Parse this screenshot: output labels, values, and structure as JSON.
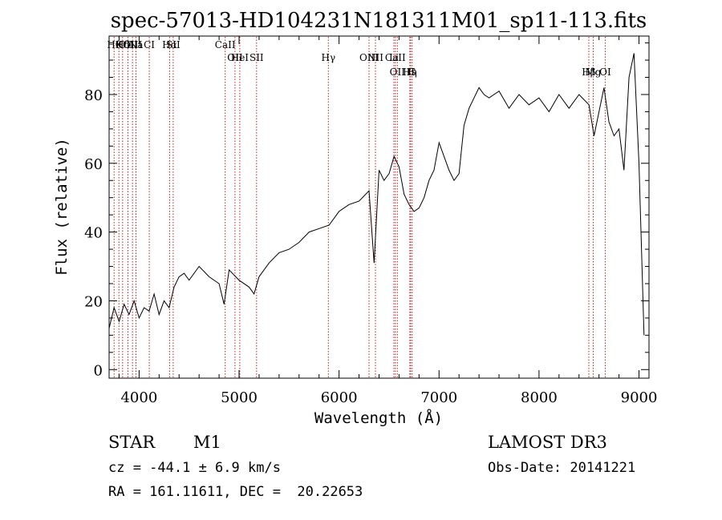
{
  "chart_data": {
    "type": "line",
    "title": "spec-57013-HD104231N181311M01_sp11-113.fits",
    "xlabel": "Wavelength (Å)",
    "ylabel": "Flux (relative)",
    "xlim": [
      3700,
      9100
    ],
    "ylim": [
      -2.5,
      97
    ],
    "x_ticks": [
      4000,
      5000,
      6000,
      7000,
      8000,
      9000
    ],
    "y_ticks": [
      0,
      20,
      40,
      60,
      80
    ],
    "grid": false,
    "line_color": "#000000",
    "marker_color": "#b22222",
    "series": [
      {
        "x": [
          3700,
          3750,
          3800,
          3850,
          3900,
          3950,
          4000,
          4050,
          4100,
          4150,
          4200,
          4250,
          4300,
          4350,
          4400,
          4450,
          4500,
          4600,
          4700,
          4800,
          4850,
          4900,
          5000,
          5100,
          5150,
          5200,
          5300,
          5400,
          5500,
          5600,
          5700,
          5800,
          5900,
          6000,
          6100,
          6200,
          6300,
          6350,
          6400,
          6450,
          6500,
          6550,
          6600,
          6650,
          6700,
          6750,
          6800,
          6850,
          6900,
          6950,
          7000,
          7050,
          7100,
          7150,
          7200,
          7250,
          7300,
          7350,
          7400,
          7450,
          7500,
          7600,
          7700,
          7800,
          7900,
          8000,
          8100,
          8200,
          8300,
          8400,
          8500,
          8550,
          8600,
          8650,
          8700,
          8750,
          8800,
          8850,
          8900,
          8950,
          9000,
          9050
        ],
        "y": [
          12,
          18,
          14,
          19,
          16,
          20,
          15,
          18,
          17,
          22,
          16,
          20,
          18,
          24,
          27,
          28,
          26,
          30,
          27,
          25,
          19,
          29,
          26,
          24,
          22,
          27,
          31,
          34,
          35,
          37,
          40,
          41,
          42,
          46,
          48,
          49,
          52,
          31,
          58,
          55,
          57,
          62,
          59,
          51,
          48,
          46,
          47,
          50,
          55,
          58,
          66,
          62,
          58,
          55,
          57,
          71,
          76,
          79,
          82,
          80,
          79,
          81,
          76,
          80,
          77,
          79,
          75,
          80,
          76,
          80,
          77,
          68,
          75,
          82,
          72,
          68,
          70,
          58,
          85,
          92,
          60,
          10
        ]
      }
    ],
    "line_markers": [
      {
        "wl": 3750,
        "label": "Hθ",
        "row": 1
      },
      {
        "wl": 3798,
        "label": "K",
        "row": 1
      },
      {
        "wl": 3835,
        "label": "Hδ",
        "row": 1
      },
      {
        "wl": 3889,
        "label": "OIII",
        "row": 1
      },
      {
        "wl": 3934,
        "label": "OIII",
        "row": 1
      },
      {
        "wl": 3969,
        "label": "Na",
        "row": 1
      },
      {
        "wl": 4102,
        "label": "CI",
        "row": 1
      },
      {
        "wl": 4305,
        "label": "Hα",
        "row": 1
      },
      {
        "wl": 4341,
        "label": "SII",
        "row": 1
      },
      {
        "wl": 4861,
        "label": "CaII",
        "row": 1
      },
      {
        "wl": 4959,
        "label": "OII",
        "row": 2
      },
      {
        "wl": 5007,
        "label": "HeI",
        "row": 2
      },
      {
        "wl": 5175,
        "label": "SII",
        "row": 2
      },
      {
        "wl": 5893,
        "label": "Hγ",
        "row": 2
      },
      {
        "wl": 6300,
        "label": "OIII",
        "row": 2
      },
      {
        "wl": 6364,
        "label": "NII",
        "row": 2
      },
      {
        "wl": 6548,
        "label": "Li",
        "row": 2
      },
      {
        "wl": 6563,
        "label": "CaII",
        "row": 2
      },
      {
        "wl": 6583,
        "label": "OII",
        "row": 3
      },
      {
        "wl": 6708,
        "label": "Hη",
        "row": 3
      },
      {
        "wl": 6716,
        "label": "H",
        "row": 3
      },
      {
        "wl": 6731,
        "label": "G",
        "row": 3
      },
      {
        "wl": 8498,
        "label": "Hβ",
        "row": 3
      },
      {
        "wl": 8542,
        "label": "Mg",
        "row": 3
      },
      {
        "wl": 8662,
        "label": "OI",
        "row": 3
      }
    ]
  },
  "info": {
    "object_type": "STAR",
    "subclass": "M1",
    "survey": "LAMOST DR3",
    "cz": "cz = -44.1 ± 6.9 km/s",
    "obs_date": "Obs-Date: 20141221",
    "coords": "RA = 161.11611, DEC =  20.22653"
  }
}
